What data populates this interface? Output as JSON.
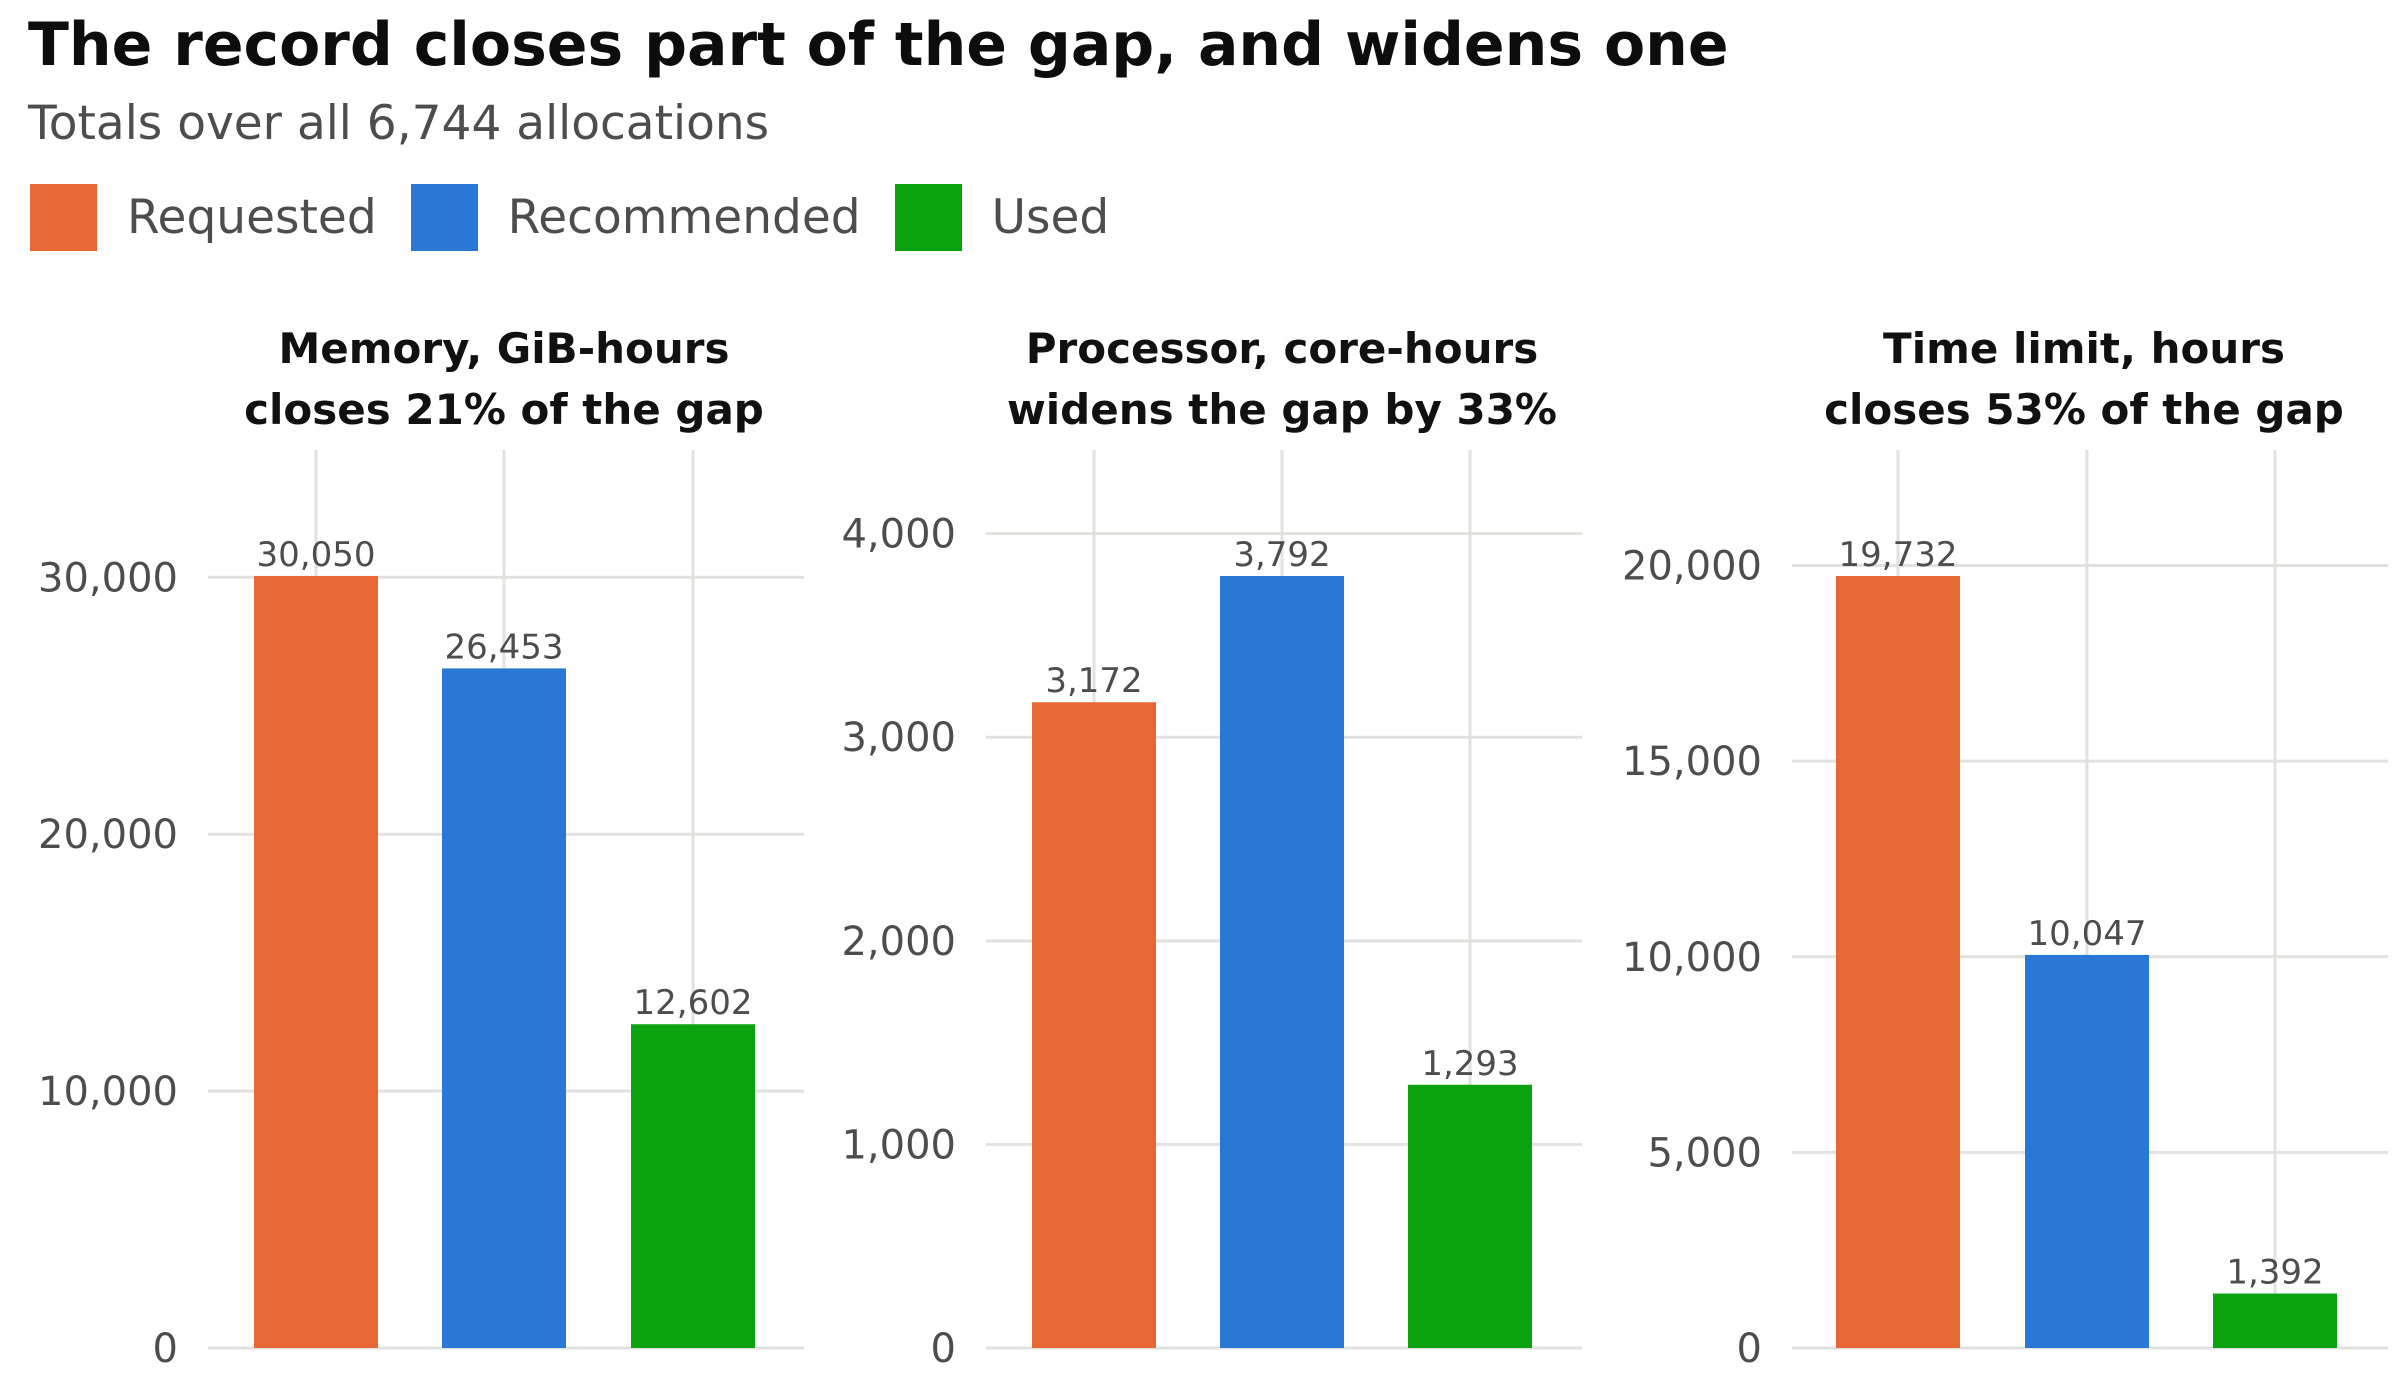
{
  "title": "The record closes part of the gap, and widens one",
  "subtitle": "Totals over all 6,744 allocations",
  "legend": [
    {
      "label": "Requested",
      "color": "#e86835"
    },
    {
      "label": "Recommended",
      "color": "#2a78d6"
    },
    {
      "label": "Used",
      "color": "#0ba20f"
    }
  ],
  "chart_data": [
    {
      "type": "bar",
      "title_lines": [
        "Memory, GiB-hours",
        "closes 21% of the gap"
      ],
      "categories": [
        "Requested",
        "Recommended",
        "Used"
      ],
      "values": [
        30050,
        26453,
        12602
      ],
      "value_labels": [
        "30,050",
        "26,453",
        "12,602"
      ],
      "ylim": [
        0,
        30050
      ],
      "yticks": [
        0,
        10000,
        20000,
        30000
      ],
      "ytick_labels": [
        "0",
        "10,000",
        "20,000",
        "30,000"
      ],
      "grid": true
    },
    {
      "type": "bar",
      "title_lines": [
        "Processor, core-hours",
        "widens the gap by 33%"
      ],
      "categories": [
        "Requested",
        "Recommended",
        "Used"
      ],
      "values": [
        3172,
        3792,
        1293
      ],
      "value_labels": [
        "3,172",
        "3,792",
        "1,293"
      ],
      "ylim": [
        0,
        3792
      ],
      "yticks": [
        0,
        1000,
        2000,
        3000,
        4000
      ],
      "ytick_labels": [
        "0",
        "1,000",
        "2,000",
        "3,000",
        "4,000"
      ],
      "grid": true
    },
    {
      "type": "bar",
      "title_lines": [
        "Time limit, hours",
        "closes 53% of the gap"
      ],
      "categories": [
        "Requested",
        "Recommended",
        "Used"
      ],
      "values": [
        19732,
        10047,
        1392
      ],
      "value_labels": [
        "19,732",
        "10,047",
        "1,392"
      ],
      "ylim": [
        0,
        19732
      ],
      "yticks": [
        0,
        5000,
        10000,
        15000,
        20000
      ],
      "ytick_labels": [
        "0",
        "5,000",
        "10,000",
        "15,000",
        "20,000"
      ],
      "grid": true
    }
  ]
}
